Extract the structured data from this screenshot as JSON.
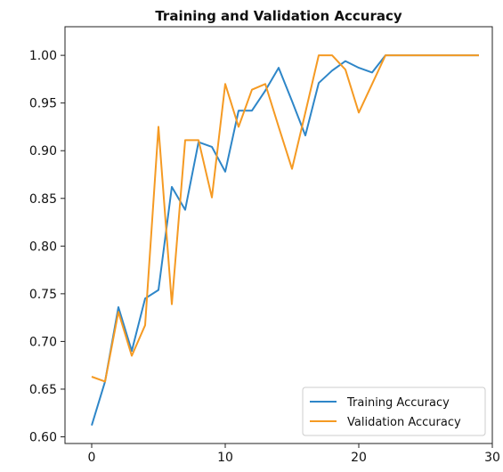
{
  "chart_data": {
    "type": "line",
    "title": "Training and Validation Accuracy",
    "xlabel": "",
    "ylabel": "",
    "xlim": [
      -2,
      30
    ],
    "ylim": [
      0.593,
      1.03
    ],
    "xticks": [
      0,
      10,
      20,
      30
    ],
    "yticks": [
      0.6,
      0.65,
      0.7,
      0.75,
      0.8,
      0.85,
      0.9,
      0.95,
      1.0
    ],
    "grid": false,
    "legend_position": "bottom-right",
    "x": [
      0,
      1,
      2,
      3,
      4,
      5,
      6,
      7,
      8,
      9,
      10,
      11,
      12,
      13,
      14,
      15,
      16,
      17,
      18,
      19,
      20,
      21,
      22,
      23,
      24,
      25,
      26,
      27,
      28,
      29
    ],
    "series": [
      {
        "name": "Training Accuracy",
        "color": "#2e86c8",
        "values": [
          0.612,
          0.658,
          0.736,
          0.69,
          0.745,
          0.754,
          0.862,
          0.838,
          0.909,
          0.904,
          0.878,
          0.942,
          0.942,
          0.963,
          0.987,
          0.952,
          0.916,
          0.971,
          0.984,
          0.994,
          0.987,
          0.982,
          1.0,
          1.0,
          1.0,
          1.0,
          1.0,
          1.0,
          1.0,
          1.0
        ]
      },
      {
        "name": "Validation Accuracy",
        "color": "#f59a23",
        "values": [
          0.663,
          0.658,
          0.731,
          0.685,
          0.717,
          0.925,
          0.739,
          0.911,
          0.911,
          0.851,
          0.97,
          0.925,
          0.964,
          0.97,
          0.925,
          0.881,
          0.94,
          1.0,
          1.0,
          0.985,
          0.94,
          0.97,
          1.0,
          1.0,
          1.0,
          1.0,
          1.0,
          1.0,
          1.0,
          1.0
        ]
      }
    ]
  }
}
